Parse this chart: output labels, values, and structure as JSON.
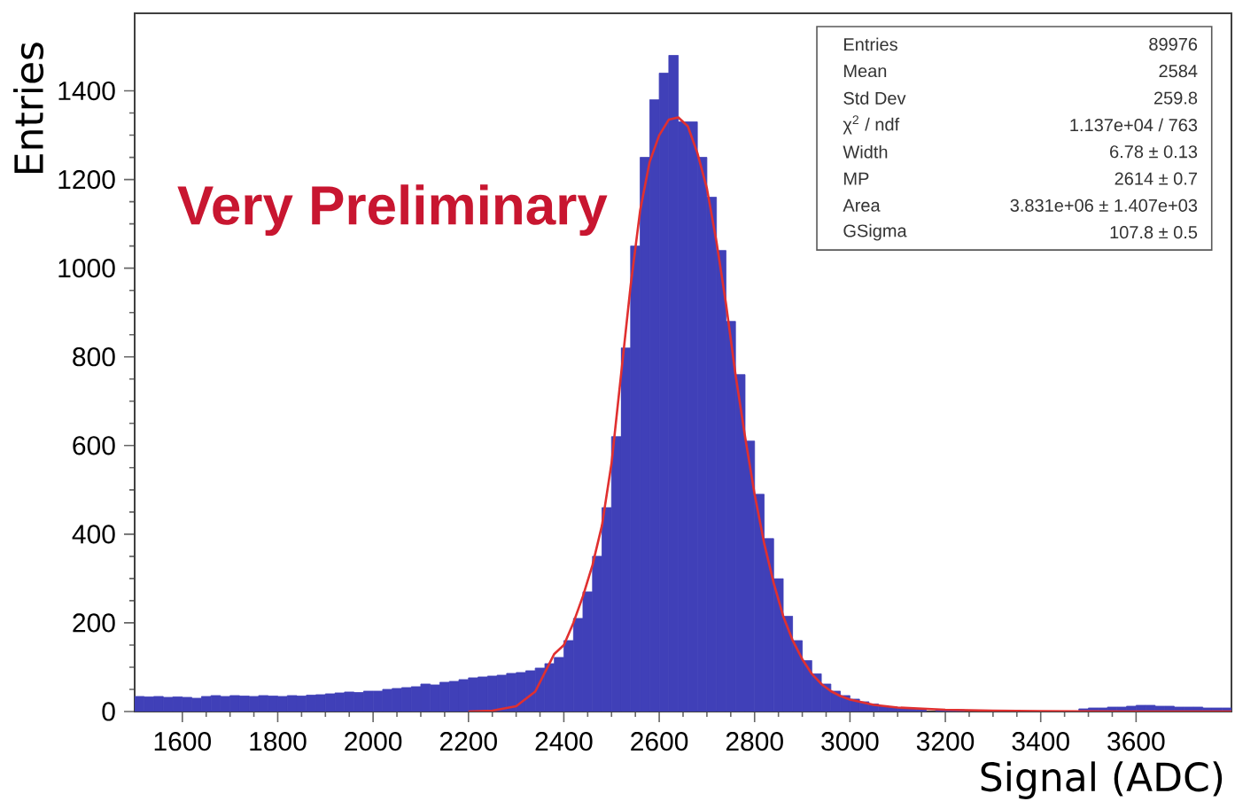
{
  "chart_data": {
    "type": "histogram",
    "xlabel": "Signal (ADC)",
    "ylabel": "Entries",
    "bins": [
      1500,
      1520,
      1540,
      1560,
      1580,
      1600,
      1620,
      1640,
      1660,
      1680,
      1700,
      1720,
      1740,
      1760,
      1780,
      1800,
      1820,
      1840,
      1860,
      1880,
      1900,
      1920,
      1940,
      1960,
      1980,
      2000,
      2020,
      2040,
      2060,
      2080,
      2100,
      2120,
      2140,
      2160,
      2180,
      2200,
      2220,
      2240,
      2260,
      2280,
      2300,
      2320,
      2340,
      2360,
      2380,
      2400,
      2420,
      2440,
      2460,
      2480,
      2500,
      2520,
      2540,
      2560,
      2580,
      2600,
      2620,
      2640,
      2660,
      2680,
      2700,
      2720,
      2740,
      2760,
      2780,
      2800,
      2820,
      2840,
      2860,
      2880,
      2900,
      2920,
      2940,
      2960,
      2980,
      3000,
      3020,
      3040,
      3060,
      3080,
      3100,
      3120,
      3140,
      3160,
      3180,
      3200,
      3220,
      3240,
      3260,
      3280,
      3300,
      3320,
      3340,
      3360,
      3380,
      3400,
      3420,
      3440,
      3460,
      3480,
      3500,
      3520,
      3540,
      3560,
      3580,
      3600,
      3620,
      3640,
      3660,
      3680,
      3700,
      3720,
      3740,
      3760,
      3780,
      3800
    ],
    "series": [
      {
        "type": "histogram",
        "color": "#4040b8",
        "values": [
          34,
          33,
          34,
          32,
          33,
          32,
          30,
          34,
          36,
          34,
          36,
          35,
          34,
          36,
          35,
          34,
          36,
          35,
          37,
          38,
          40,
          42,
          44,
          43,
          46,
          46,
          50,
          52,
          54,
          56,
          62,
          60,
          66,
          68,
          72,
          76,
          78,
          80,
          82,
          86,
          88,
          92,
          98,
          108,
          122,
          160,
          210,
          270,
          350,
          460,
          620,
          820,
          1050,
          1250,
          1380,
          1440,
          1480,
          1330,
          1330,
          1250,
          1160,
          1040,
          880,
          760,
          610,
          490,
          390,
          300,
          215,
          160,
          115,
          85,
          62,
          46,
          36,
          28,
          22,
          17,
          13,
          10,
          8,
          7,
          6,
          null,
          5,
          4,
          4,
          null,
          null,
          null,
          null,
          null,
          null,
          null,
          null,
          null,
          null,
          null,
          null,
          6,
          8,
          8,
          10,
          10,
          12,
          14,
          14,
          12,
          12,
          10,
          10,
          10,
          8,
          8,
          8
        ]
      },
      {
        "type": "line",
        "color": "#e03030",
        "x": [
          2200,
          2250,
          2300,
          2340,
          2380,
          2400,
          2420,
          2440,
          2460,
          2480,
          2500,
          2520,
          2540,
          2560,
          2580,
          2600,
          2620,
          2640,
          2660,
          2680,
          2700,
          2720,
          2740,
          2760,
          2780,
          2800,
          2820,
          2840,
          2860,
          2880,
          2900,
          2920,
          2940,
          2960,
          2980,
          3000,
          3050,
          3100,
          3200,
          3300,
          3400,
          3600,
          3800
        ],
        "values": [
          0,
          2,
          12,
          45,
          130,
          150,
          200,
          260,
          330,
          420,
          560,
          760,
          960,
          1130,
          1240,
          1300,
          1335,
          1340,
          1320,
          1260,
          1180,
          1060,
          920,
          760,
          620,
          490,
          380,
          290,
          215,
          160,
          118,
          85,
          62,
          46,
          35,
          27,
          15,
          9,
          4,
          2,
          1,
          0,
          0
        ]
      }
    ],
    "xlim": [
      1500,
      3800
    ],
    "ylim": [
      0,
      1575
    ],
    "xticks": [
      1600,
      1800,
      2000,
      2200,
      2400,
      2600,
      2800,
      3000,
      3200,
      3400,
      3600
    ],
    "yticks": [
      0,
      200,
      400,
      600,
      800,
      1000,
      1200,
      1400
    ],
    "grid": false,
    "annotations": [
      "Very Preliminary",
      "Entries",
      "89976",
      "Mean",
      "2584",
      "Std Dev",
      "259.8",
      "χ$^{2}$ / ndf",
      "1.137e+04 / 763",
      "Width",
      "6.78 ± 0.13",
      "MP",
      "2614 ± 0.7",
      "Area",
      "3.831e+06 ± 1.407e+03",
      "GSigma",
      "107.8 ± 0.5"
    ]
  }
}
